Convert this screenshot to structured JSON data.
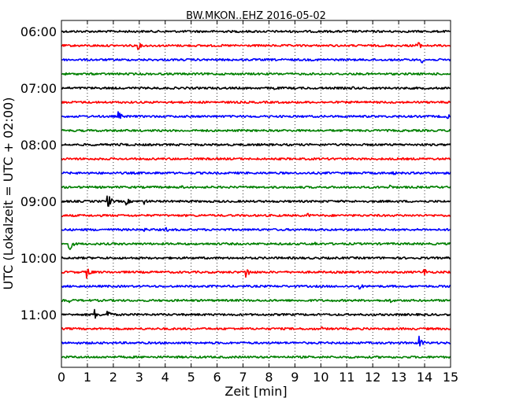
{
  "chart_data": {
    "type": "line",
    "title": "BW.MKON..EHZ 2016-05-02",
    "xlabel": "Zeit  [min]",
    "ylabel": "UTC (Lokalzeit = UTC + 02:00)",
    "xlim": [
      0,
      15
    ],
    "x_ticks": [
      "0",
      "1",
      "2",
      "3",
      "4",
      "5",
      "6",
      "7",
      "8",
      "9",
      "10",
      "11",
      "12",
      "13",
      "14",
      "15"
    ],
    "y_tick_labels": [
      "06:00",
      "07:00",
      "08:00",
      "09:00",
      "10:00",
      "11:00"
    ],
    "trace_interval_min": 15,
    "grid": "vertical dotted at each minute",
    "series_colors": [
      "#000000",
      "#ff0000",
      "#0000ff",
      "#008000"
    ],
    "traces": [
      {
        "start": "06:00",
        "color": "#000000",
        "events": []
      },
      {
        "start": "06:15",
        "color": "#ff0000",
        "events": [
          {
            "x": 2.9,
            "amp": 7
          },
          {
            "x": 13.7,
            "amp": 7
          }
        ]
      },
      {
        "start": "06:30",
        "color": "#0000ff",
        "events": [
          {
            "x": 13.9,
            "amp": 4
          }
        ]
      },
      {
        "start": "06:45",
        "color": "#008000",
        "events": []
      },
      {
        "start": "07:00",
        "color": "#000000",
        "events": [
          {
            "x": 8.2,
            "amp": 3
          },
          {
            "x": 11.2,
            "amp": 3
          }
        ]
      },
      {
        "start": "07:15",
        "color": "#ff0000",
        "events": []
      },
      {
        "start": "07:30",
        "color": "#0000ff",
        "events": [
          {
            "x": 2.2,
            "amp": 6
          },
          {
            "x": 14.9,
            "amp": 4
          }
        ]
      },
      {
        "start": "07:45",
        "color": "#008000",
        "events": []
      },
      {
        "start": "08:00",
        "color": "#000000",
        "events": [
          {
            "x": 2.3,
            "amp": 3
          }
        ]
      },
      {
        "start": "08:15",
        "color": "#ff0000",
        "events": [
          {
            "x": 10.5,
            "amp": 3
          }
        ]
      },
      {
        "start": "08:30",
        "color": "#0000ff",
        "events": [
          {
            "x": 3.7,
            "amp": 3
          },
          {
            "x": 12.8,
            "amp": 3
          }
        ]
      },
      {
        "start": "08:45",
        "color": "#008000",
        "events": [
          {
            "x": 4.6,
            "amp": 3
          },
          {
            "x": 12.7,
            "amp": 3
          }
        ]
      },
      {
        "start": "09:00",
        "color": "#000000",
        "events": [
          {
            "x": 1.8,
            "amp": 9
          },
          {
            "x": 2.5,
            "amp": 5
          },
          {
            "x": 3.2,
            "amp": 4
          }
        ]
      },
      {
        "start": "09:15",
        "color": "#ff0000",
        "events": [
          {
            "x": 9.5,
            "amp": 3
          }
        ]
      },
      {
        "start": "09:30",
        "color": "#0000ff",
        "events": [
          {
            "x": 3.2,
            "amp": 3
          },
          {
            "x": 4.0,
            "amp": 4
          }
        ]
      },
      {
        "start": "09:45",
        "color": "#008000",
        "events": [
          {
            "x": 0.3,
            "amp": 9
          },
          {
            "x": 9.8,
            "amp": 3
          }
        ]
      },
      {
        "start": "10:00",
        "color": "#000000",
        "events": []
      },
      {
        "start": "10:15",
        "color": "#ff0000",
        "events": [
          {
            "x": 1.0,
            "amp": 8
          },
          {
            "x": 7.1,
            "amp": 9
          },
          {
            "x": 14.0,
            "amp": 5
          }
        ]
      },
      {
        "start": "10:30",
        "color": "#0000ff",
        "events": [
          {
            "x": 11.5,
            "amp": 4
          }
        ]
      },
      {
        "start": "10:45",
        "color": "#008000",
        "events": [
          {
            "x": 0.3,
            "amp": 4
          },
          {
            "x": 12.7,
            "amp": 3
          }
        ]
      },
      {
        "start": "11:00",
        "color": "#000000",
        "events": [
          {
            "x": 1.3,
            "amp": 7
          },
          {
            "x": 1.8,
            "amp": 6
          }
        ]
      },
      {
        "start": "11:15",
        "color": "#ff0000",
        "events": [
          {
            "x": 10.0,
            "amp": 3
          }
        ]
      },
      {
        "start": "11:30",
        "color": "#0000ff",
        "events": [
          {
            "x": 13.8,
            "amp": 9
          }
        ]
      },
      {
        "start": "11:45",
        "color": "#008000",
        "events": []
      }
    ]
  }
}
